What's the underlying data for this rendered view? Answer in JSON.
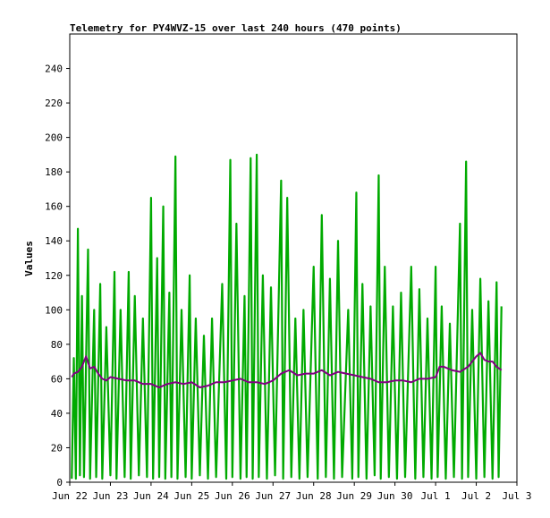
{
  "chart_data": {
    "type": "line",
    "title": "Telemetry for PY4WVZ-15 over last 240 hours (470 points)",
    "xlabel": "",
    "ylabel": "Values",
    "ylim": [
      0,
      260
    ],
    "y_ticks": [
      0,
      20,
      40,
      60,
      80,
      100,
      120,
      140,
      160,
      180,
      200,
      220,
      240
    ],
    "x_range_days": [
      0,
      11
    ],
    "x_tick_labels": [
      "Jun 22",
      "Jun 23",
      "Jun 24",
      "Jun 25",
      "Jun 26",
      "Jun 27",
      "Jun 28",
      "Jun 29",
      "Jun 30",
      "Jul 1",
      "Jul 2",
      "Jul 3"
    ],
    "grid": false,
    "legend": "none",
    "series": [
      {
        "name": "",
        "color": "#00aa00",
        "style": "spiky band",
        "points": [
          [
            0.05,
            2
          ],
          [
            0.1,
            72
          ],
          [
            0.15,
            2
          ],
          [
            0.2,
            147
          ],
          [
            0.25,
            4
          ],
          [
            0.3,
            108
          ],
          [
            0.35,
            3
          ],
          [
            0.45,
            135
          ],
          [
            0.5,
            2
          ],
          [
            0.6,
            100
          ],
          [
            0.65,
            3
          ],
          [
            0.75,
            115
          ],
          [
            0.8,
            2
          ],
          [
            0.9,
            90
          ],
          [
            1.0,
            4
          ],
          [
            1.1,
            122
          ],
          [
            1.15,
            2
          ],
          [
            1.25,
            100
          ],
          [
            1.35,
            3
          ],
          [
            1.45,
            122
          ],
          [
            1.5,
            2
          ],
          [
            1.6,
            108
          ],
          [
            1.7,
            4
          ],
          [
            1.8,
            95
          ],
          [
            1.9,
            3
          ],
          [
            2.0,
            165
          ],
          [
            2.05,
            2
          ],
          [
            2.15,
            130
          ],
          [
            2.2,
            3
          ],
          [
            2.3,
            160
          ],
          [
            2.35,
            2
          ],
          [
            2.45,
            110
          ],
          [
            2.5,
            3
          ],
          [
            2.6,
            189
          ],
          [
            2.65,
            2
          ],
          [
            2.75,
            100
          ],
          [
            2.85,
            3
          ],
          [
            2.95,
            120
          ],
          [
            3.0,
            2
          ],
          [
            3.1,
            95
          ],
          [
            3.2,
            4
          ],
          [
            3.3,
            85
          ],
          [
            3.4,
            2
          ],
          [
            3.5,
            95
          ],
          [
            3.6,
            3
          ],
          [
            3.75,
            115
          ],
          [
            3.85,
            2
          ],
          [
            3.95,
            187
          ],
          [
            4.0,
            3
          ],
          [
            4.1,
            150
          ],
          [
            4.2,
            2
          ],
          [
            4.3,
            108
          ],
          [
            4.35,
            3
          ],
          [
            4.45,
            188
          ],
          [
            4.5,
            2
          ],
          [
            4.6,
            190
          ],
          [
            4.65,
            3
          ],
          [
            4.75,
            120
          ],
          [
            4.85,
            2
          ],
          [
            4.95,
            113
          ],
          [
            5.05,
            4
          ],
          [
            5.2,
            175
          ],
          [
            5.25,
            2
          ],
          [
            5.35,
            165
          ],
          [
            5.45,
            3
          ],
          [
            5.55,
            95
          ],
          [
            5.65,
            2
          ],
          [
            5.75,
            100
          ],
          [
            5.85,
            3
          ],
          [
            6.0,
            125
          ],
          [
            6.1,
            2
          ],
          [
            6.2,
            155
          ],
          [
            6.3,
            3
          ],
          [
            6.4,
            118
          ],
          [
            6.5,
            2
          ],
          [
            6.6,
            140
          ],
          [
            6.7,
            3
          ],
          [
            6.85,
            100
          ],
          [
            6.95,
            2
          ],
          [
            7.05,
            168
          ],
          [
            7.1,
            3
          ],
          [
            7.2,
            115
          ],
          [
            7.3,
            2
          ],
          [
            7.4,
            102
          ],
          [
            7.5,
            4
          ],
          [
            7.6,
            178
          ],
          [
            7.65,
            2
          ],
          [
            7.75,
            125
          ],
          [
            7.85,
            3
          ],
          [
            7.95,
            102
          ],
          [
            8.05,
            2
          ],
          [
            8.15,
            110
          ],
          [
            8.25,
            3
          ],
          [
            8.4,
            125
          ],
          [
            8.5,
            2
          ],
          [
            8.6,
            112
          ],
          [
            8.7,
            3
          ],
          [
            8.8,
            95
          ],
          [
            8.9,
            2
          ],
          [
            9.0,
            125
          ],
          [
            9.05,
            3
          ],
          [
            9.15,
            102
          ],
          [
            9.25,
            2
          ],
          [
            9.35,
            92
          ],
          [
            9.45,
            3
          ],
          [
            9.6,
            150
          ],
          [
            9.65,
            2
          ],
          [
            9.75,
            186
          ],
          [
            9.8,
            3
          ],
          [
            9.9,
            100
          ],
          [
            10.0,
            2
          ],
          [
            10.1,
            118
          ],
          [
            10.2,
            3
          ],
          [
            10.3,
            105
          ],
          [
            10.4,
            2
          ],
          [
            10.5,
            116
          ],
          [
            10.55,
            3
          ],
          [
            10.62,
            102
          ]
        ]
      },
      {
        "name": "",
        "color": "#800080",
        "style": "line",
        "points": [
          [
            0.05,
            61
          ],
          [
            0.1,
            63
          ],
          [
            0.2,
            64
          ],
          [
            0.3,
            67
          ],
          [
            0.4,
            73
          ],
          [
            0.5,
            66
          ],
          [
            0.6,
            67
          ],
          [
            0.7,
            63
          ],
          [
            0.8,
            60
          ],
          [
            0.9,
            59
          ],
          [
            1.0,
            61
          ],
          [
            1.2,
            60
          ],
          [
            1.4,
            59
          ],
          [
            1.6,
            59
          ],
          [
            1.8,
            57
          ],
          [
            2.0,
            57
          ],
          [
            2.2,
            55
          ],
          [
            2.4,
            57
          ],
          [
            2.6,
            58
          ],
          [
            2.8,
            57
          ],
          [
            3.0,
            58
          ],
          [
            3.2,
            55
          ],
          [
            3.4,
            56
          ],
          [
            3.6,
            58
          ],
          [
            3.8,
            58
          ],
          [
            4.0,
            59
          ],
          [
            4.2,
            60
          ],
          [
            4.4,
            58
          ],
          [
            4.6,
            58
          ],
          [
            4.8,
            57
          ],
          [
            5.0,
            59
          ],
          [
            5.2,
            63
          ],
          [
            5.4,
            65
          ],
          [
            5.6,
            62
          ],
          [
            5.8,
            63
          ],
          [
            6.0,
            63
          ],
          [
            6.2,
            65
          ],
          [
            6.4,
            62
          ],
          [
            6.6,
            64
          ],
          [
            6.8,
            63
          ],
          [
            7.0,
            62
          ],
          [
            7.2,
            61
          ],
          [
            7.4,
            60
          ],
          [
            7.6,
            58
          ],
          [
            7.8,
            58
          ],
          [
            8.0,
            59
          ],
          [
            8.2,
            59
          ],
          [
            8.4,
            58
          ],
          [
            8.6,
            60
          ],
          [
            8.8,
            60
          ],
          [
            9.0,
            61
          ],
          [
            9.1,
            67
          ],
          [
            9.2,
            67
          ],
          [
            9.4,
            65
          ],
          [
            9.6,
            64
          ],
          [
            9.8,
            67
          ],
          [
            10.0,
            73
          ],
          [
            10.1,
            75
          ],
          [
            10.2,
            71
          ],
          [
            10.3,
            70
          ],
          [
            10.4,
            70
          ],
          [
            10.5,
            67
          ],
          [
            10.62,
            65
          ]
        ]
      }
    ]
  }
}
